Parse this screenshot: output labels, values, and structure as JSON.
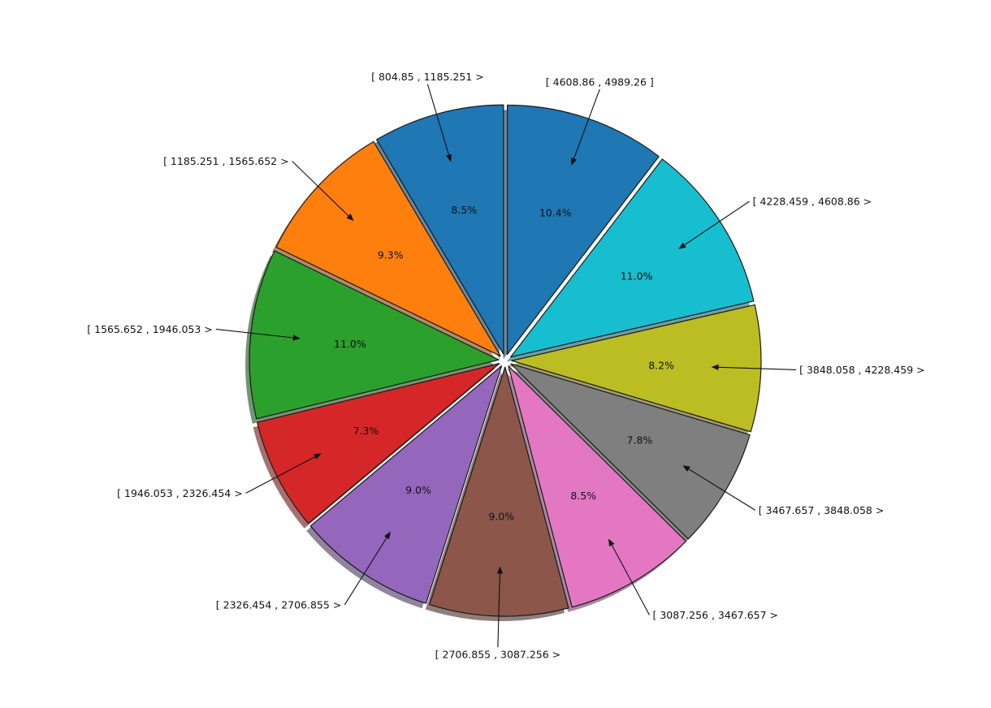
{
  "chart_data": {
    "type": "pie",
    "title": "",
    "start_angle_deg": 90,
    "direction": "clockwise",
    "exploded": true,
    "shadow": true,
    "slices": [
      {
        "label": "[ 4608.86 , 4989.26 ]",
        "percent": 10.4,
        "percent_label": "10.4%",
        "color": "#1f77b4"
      },
      {
        "label": "[ 4228.459 , 4608.86 >",
        "percent": 11.0,
        "percent_label": "11.0%",
        "color": "#17becf"
      },
      {
        "label": "[ 3848.058 , 4228.459 >",
        "percent": 8.2,
        "percent_label": "8.2%",
        "color": "#bcbd22"
      },
      {
        "label": "[ 3467.657 , 3848.058 >",
        "percent": 7.8,
        "percent_label": "7.8%",
        "color": "#7f7f7f"
      },
      {
        "label": "[ 3087.256 , 3467.657 >",
        "percent": 8.5,
        "percent_label": "8.5%",
        "color": "#e377c2"
      },
      {
        "label": "[ 2706.855 , 3087.256 >",
        "percent": 9.0,
        "percent_label": "9.0%",
        "color": "#8c564b"
      },
      {
        "label": "[ 2326.454 , 2706.855 >",
        "percent": 9.0,
        "percent_label": "9.0%",
        "color": "#9467bd"
      },
      {
        "label": "[ 1946.053 , 2326.454 >",
        "percent": 7.3,
        "percent_label": "7.3%",
        "color": "#d62728"
      },
      {
        "label": "[ 1565.652 , 1946.053 >",
        "percent": 11.0,
        "percent_label": "11.0%",
        "color": "#2ca02c"
      },
      {
        "label": "[ 1185.251 , 1565.652 >",
        "percent": 9.3,
        "percent_label": "9.3%",
        "color": "#ff7f0e"
      },
      {
        "label": "[ 804.85 , 1185.251 >",
        "percent": 8.5,
        "percent_label": "8.5%",
        "color": "#1f77b4"
      }
    ]
  }
}
